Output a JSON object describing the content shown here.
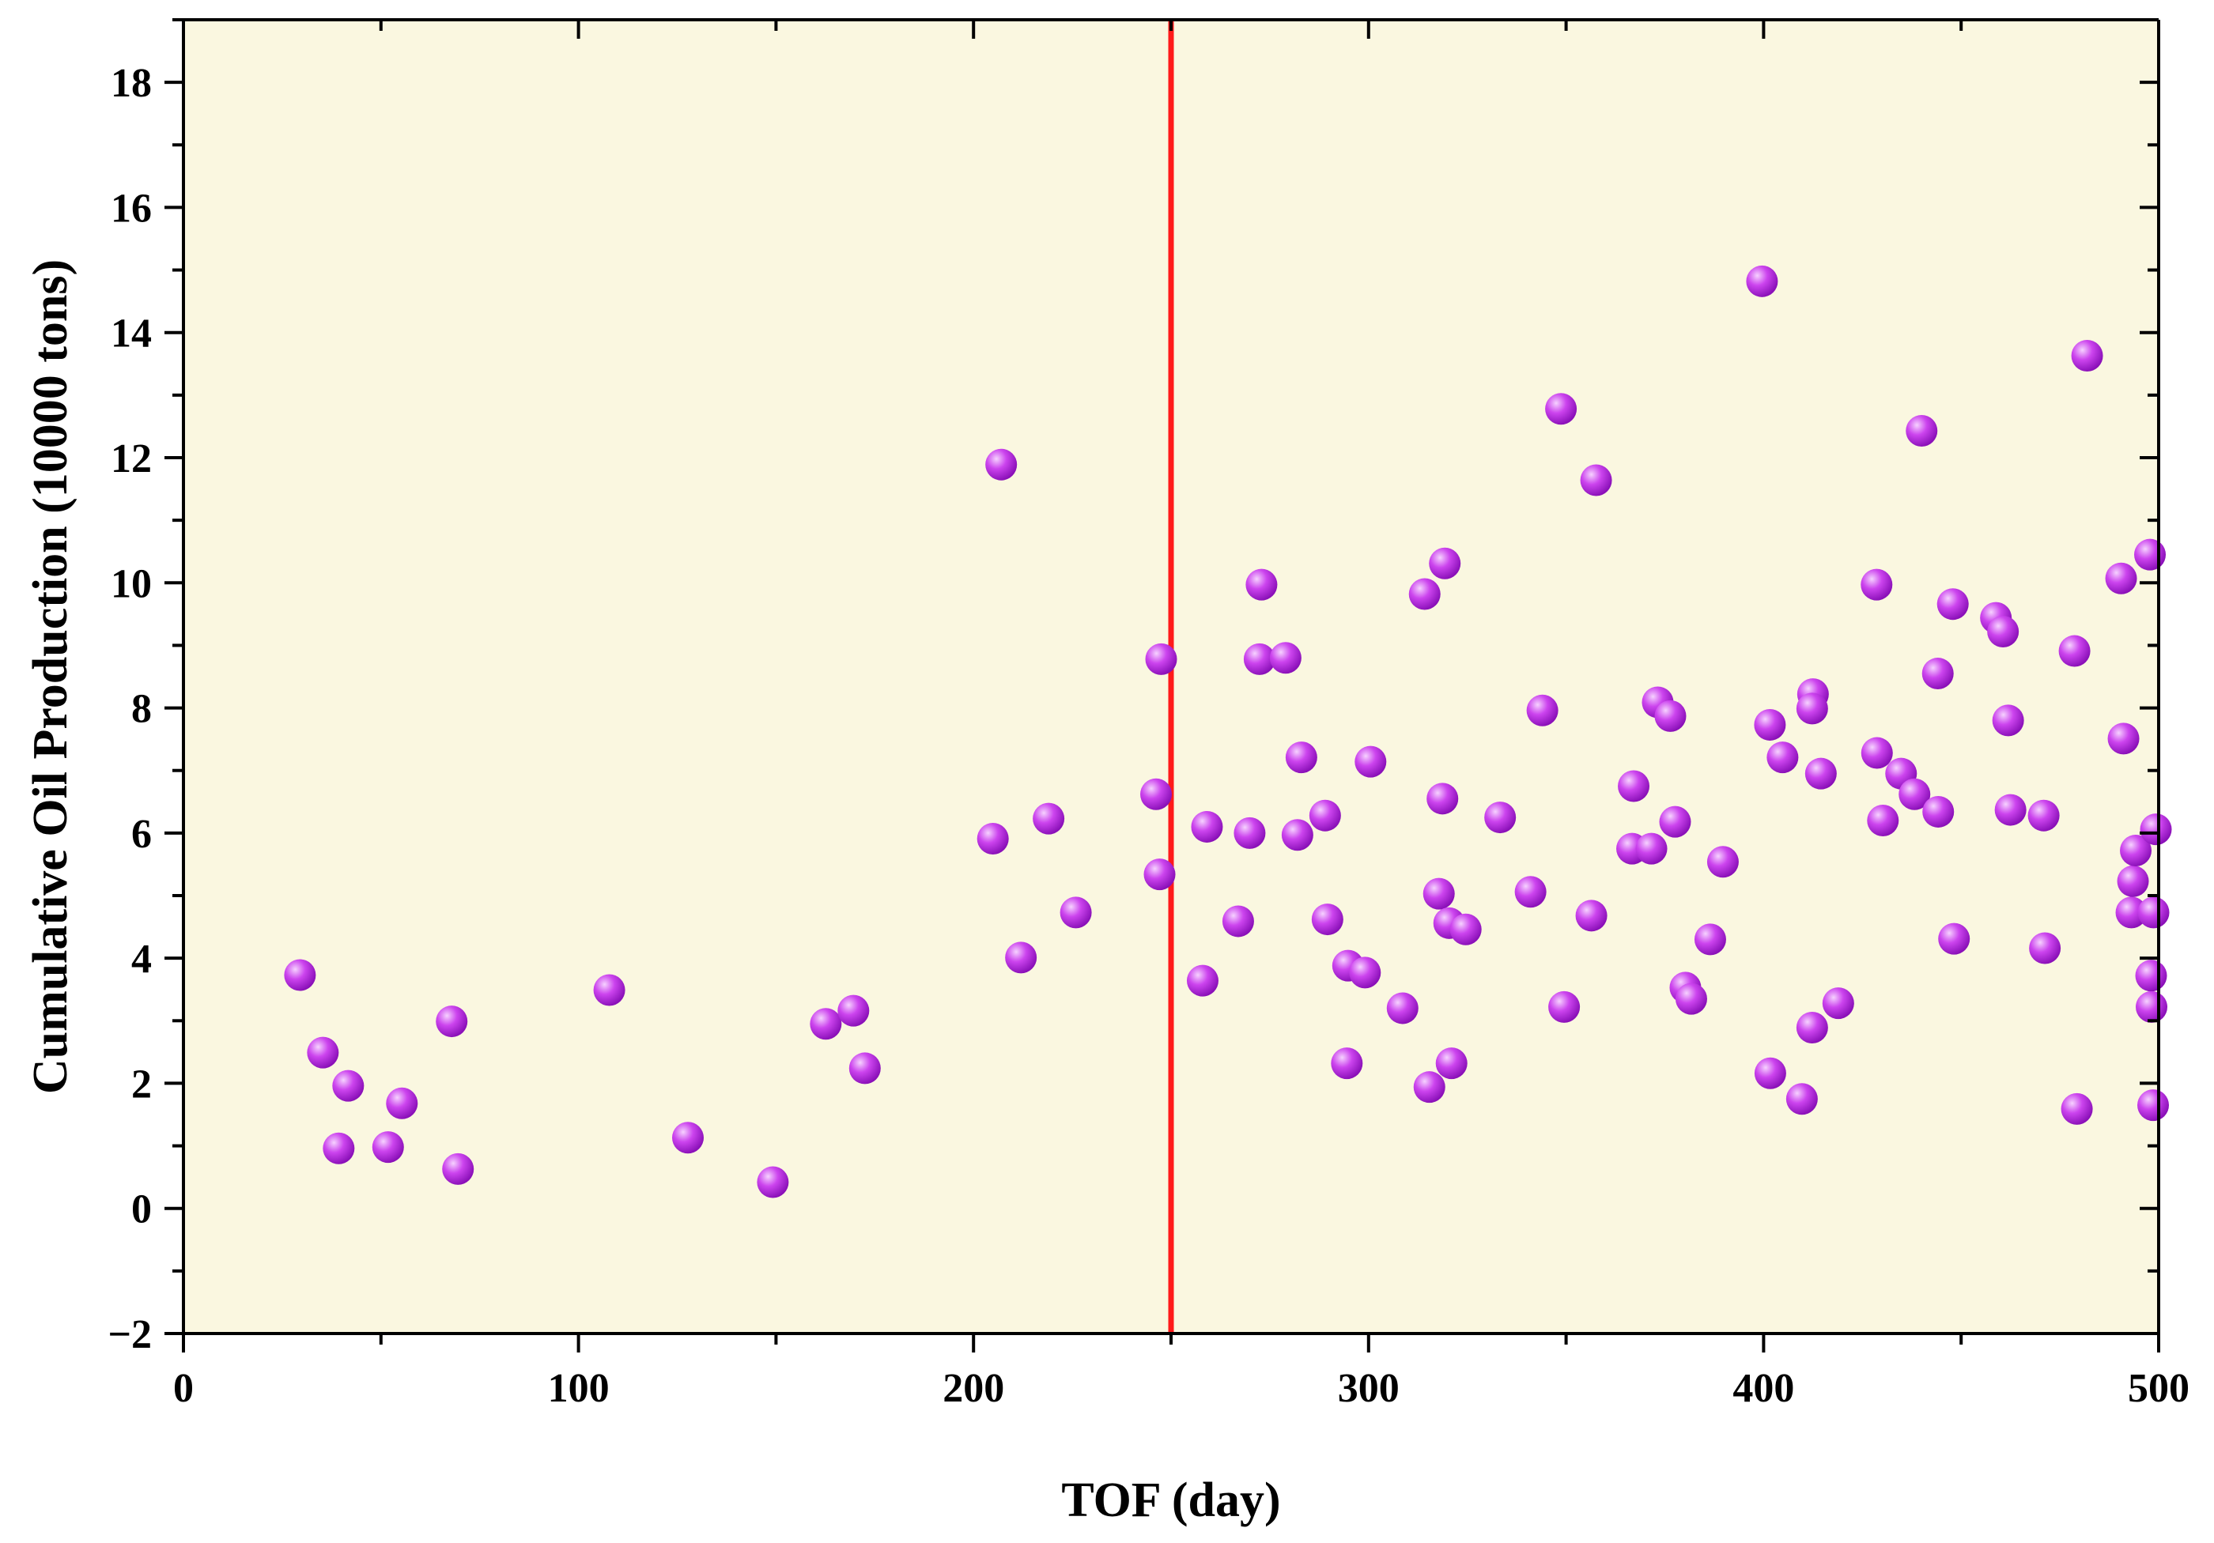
{
  "chart_data": {
    "type": "scatter",
    "xlabel": "TOF (day)",
    "ylabel": "Cumulative Oil Production (10000 tons)",
    "xlim": [
      0,
      500
    ],
    "ylim": [
      -2,
      19
    ],
    "x_ticks": [
      0,
      100,
      200,
      300,
      400,
      500
    ],
    "y_ticks": [
      -2,
      0,
      2,
      4,
      6,
      8,
      10,
      12,
      14,
      16,
      18
    ],
    "x_tick_labels": [
      "0",
      "100",
      "200",
      "300",
      "400",
      "500"
    ],
    "y_tick_labels": [
      "−2",
      "0",
      "2",
      "4",
      "6",
      "8",
      "10",
      "12",
      "14",
      "16",
      "18"
    ],
    "grid": false,
    "legend": "none",
    "vertical_line_x": 250,
    "colors": {
      "plot_background": "#faf7e0",
      "marker": "#cc44ee",
      "marker_highlight": "#f6d2ff",
      "marker_shadow": "#8a10b8",
      "reference_line": "#ff1a1a",
      "axes": "#000000"
    },
    "points": [
      [
        29.5,
        3.73
      ],
      [
        35.3,
        2.49
      ],
      [
        39.3,
        0.96
      ],
      [
        41.7,
        1.96
      ],
      [
        51.8,
        0.98
      ],
      [
        55.3,
        1.68
      ],
      [
        67.9,
        2.99
      ],
      [
        69.5,
        0.63
      ],
      [
        107.8,
        3.49
      ],
      [
        127.7,
        1.13
      ],
      [
        149.2,
        0.42
      ],
      [
        162.6,
        2.95
      ],
      [
        169.6,
        3.16
      ],
      [
        172.5,
        2.24
      ],
      [
        204.9,
        5.91
      ],
      [
        207.0,
        11.89
      ],
      [
        212.0,
        4.01
      ],
      [
        219.0,
        6.23
      ],
      [
        225.9,
        4.73
      ],
      [
        246.2,
        6.62
      ],
      [
        247.1,
        5.34
      ],
      [
        247.5,
        8.78
      ],
      [
        258.0,
        3.64
      ],
      [
        259.1,
        6.1
      ],
      [
        267.0,
        4.59
      ],
      [
        269.9,
        6.0
      ],
      [
        272.9,
        9.97
      ],
      [
        272.4,
        8.78
      ],
      [
        279.0,
        8.8
      ],
      [
        282.0,
        5.97
      ],
      [
        283.0,
        7.21
      ],
      [
        289.0,
        6.28
      ],
      [
        289.6,
        4.62
      ],
      [
        294.5,
        2.32
      ],
      [
        294.8,
        3.88
      ],
      [
        299.1,
        3.77
      ],
      [
        300.5,
        7.14
      ],
      [
        308.6,
        3.2
      ],
      [
        314.2,
        9.82
      ],
      [
        315.4,
        1.94
      ],
      [
        317.8,
        5.03
      ],
      [
        318.7,
        6.55
      ],
      [
        319.3,
        10.31
      ],
      [
        320.4,
        4.56
      ],
      [
        321.0,
        2.32
      ],
      [
        324.6,
        4.46
      ],
      [
        333.3,
        6.25
      ],
      [
        341.0,
        5.06
      ],
      [
        344.0,
        7.96
      ],
      [
        348.7,
        12.78
      ],
      [
        349.5,
        3.22
      ],
      [
        356.4,
        4.68
      ],
      [
        357.6,
        11.64
      ],
      [
        366.7,
        5.75
      ],
      [
        367.1,
        6.75
      ],
      [
        371.6,
        5.75
      ],
      [
        373.2,
        8.09
      ],
      [
        376.4,
        7.87
      ],
      [
        377.6,
        6.18
      ],
      [
        380.2,
        3.53
      ],
      [
        381.7,
        3.35
      ],
      [
        386.5,
        4.3
      ],
      [
        389.7,
        5.54
      ],
      [
        399.6,
        14.82
      ],
      [
        401.6,
        7.73
      ],
      [
        401.7,
        2.16
      ],
      [
        404.8,
        7.21
      ],
      [
        409.7,
        1.75
      ],
      [
        412.3,
        2.89
      ],
      [
        412.5,
        8.22
      ],
      [
        412.3,
        7.99
      ],
      [
        414.5,
        6.95
      ],
      [
        418.9,
        3.28
      ],
      [
        428.6,
        9.97
      ],
      [
        428.7,
        7.28
      ],
      [
        430.2,
        6.2
      ],
      [
        434.8,
        6.95
      ],
      [
        438.2,
        6.62
      ],
      [
        440.0,
        12.43
      ],
      [
        444.1,
        8.55
      ],
      [
        444.2,
        6.34
      ],
      [
        447.9,
        9.66
      ],
      [
        448.2,
        4.31
      ],
      [
        458.8,
        9.44
      ],
      [
        460.6,
        9.22
      ],
      [
        461.9,
        7.8
      ],
      [
        462.5,
        6.37
      ],
      [
        470.9,
        6.28
      ],
      [
        471.2,
        4.16
      ],
      [
        478.7,
        8.91
      ],
      [
        479.3,
        1.59
      ],
      [
        481.9,
        13.63
      ],
      [
        490.5,
        10.07
      ],
      [
        491.1,
        7.51
      ],
      [
        493.1,
        4.73
      ],
      [
        493.5,
        5.23
      ],
      [
        494.2,
        5.72
      ],
      [
        497.8,
        10.45
      ],
      [
        498.1,
        3.72
      ],
      [
        498.2,
        3.22
      ],
      [
        498.6,
        1.65
      ],
      [
        498.7,
        4.73
      ],
      [
        499.3,
        6.06
      ]
    ]
  }
}
